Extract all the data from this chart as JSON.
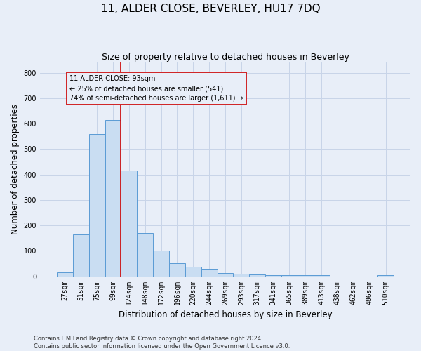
{
  "title": "11, ALDER CLOSE, BEVERLEY, HU17 7DQ",
  "subtitle": "Size of property relative to detached houses in Beverley",
  "xlabel": "Distribution of detached houses by size in Beverley",
  "ylabel": "Number of detached properties",
  "footer_line1": "Contains HM Land Registry data © Crown copyright and database right 2024.",
  "footer_line2": "Contains public sector information licensed under the Open Government Licence v3.0.",
  "categories": [
    "27sqm",
    "51sqm",
    "75sqm",
    "99sqm",
    "124sqm",
    "148sqm",
    "172sqm",
    "196sqm",
    "220sqm",
    "244sqm",
    "269sqm",
    "293sqm",
    "317sqm",
    "341sqm",
    "365sqm",
    "389sqm",
    "413sqm",
    "438sqm",
    "462sqm",
    "486sqm",
    "510sqm"
  ],
  "bar_values": [
    15,
    163,
    558,
    613,
    415,
    170,
    100,
    50,
    38,
    28,
    12,
    11,
    8,
    5,
    5,
    5,
    4,
    0,
    0,
    0,
    5
  ],
  "bar_color": "#c9ddf2",
  "bar_edge_color": "#5b9bd5",
  "vline_x": 3.5,
  "vline_color": "#cc0000",
  "annotation_text_line1": "11 ALDER CLOSE: 93sqm",
  "annotation_text_line2": "← 25% of detached houses are smaller (541)",
  "annotation_text_line3": "74% of semi-detached houses are larger (1,611) →",
  "ylim": [
    0,
    840
  ],
  "yticks": [
    0,
    100,
    200,
    300,
    400,
    500,
    600,
    700,
    800
  ],
  "grid_color": "#c8d4e8",
  "background_color": "#e8eef8",
  "title_fontsize": 11,
  "subtitle_fontsize": 9,
  "axis_label_fontsize": 8.5,
  "tick_fontsize": 7,
  "footer_fontsize": 6
}
